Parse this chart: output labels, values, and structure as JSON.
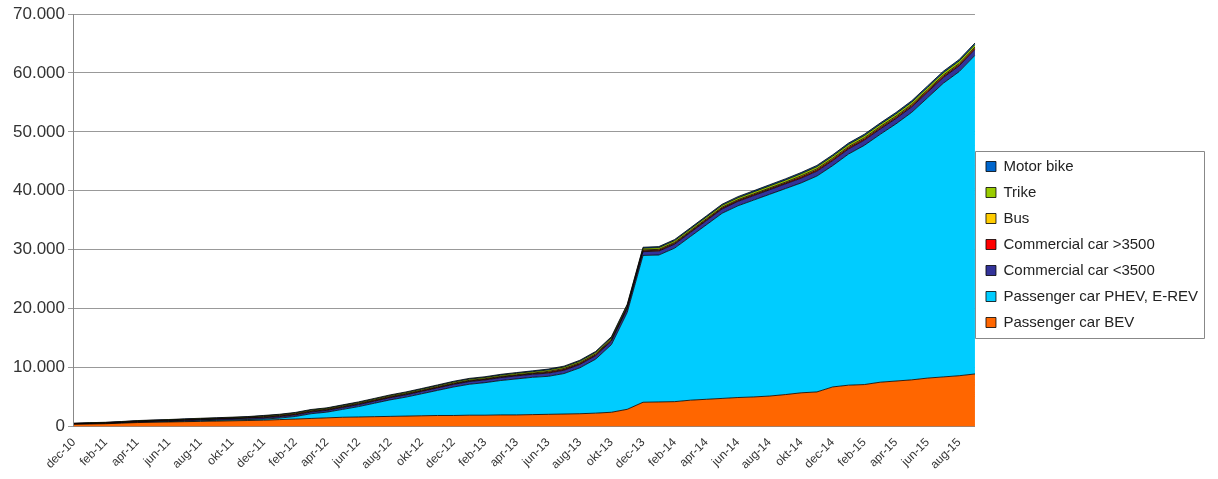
{
  "chart_data": {
    "type": "area",
    "stacked": true,
    "grid": "y",
    "legend": "right",
    "categories": [
      "dec-10",
      null,
      "feb-11",
      null,
      "apr-11",
      null,
      "jun-11",
      null,
      "aug-11",
      null,
      "okt-11",
      null,
      "dec-11",
      null,
      "feb-12",
      null,
      "apr-12",
      null,
      "jun-12",
      null,
      "aug-12",
      null,
      "okt-12",
      null,
      "dec-12",
      null,
      "feb-13",
      null,
      "apr-13",
      null,
      "jun-13",
      null,
      "aug-13",
      null,
      "okt-13",
      null,
      "dec-13",
      null,
      "feb-14",
      null,
      "apr-14",
      null,
      "jun-14",
      null,
      "aug-14",
      null,
      "okt-14",
      null,
      "dec-14",
      null,
      "feb-15",
      null,
      "apr-15",
      null,
      "jun-15",
      null,
      "aug-15",
      null
    ],
    "ylim": [
      0,
      70000
    ],
    "yticks": [
      0,
      {
        "value": 10000,
        "label": "10.000"
      },
      {
        "value": 20000,
        "label": "20.000"
      },
      {
        "value": 30000,
        "label": "30.000"
      },
      {
        "value": 40000,
        "label": "40.000"
      },
      {
        "value": 50000,
        "label": "50.000"
      },
      {
        "value": 60000,
        "label": "60.000"
      },
      {
        "value": 70000,
        "label": "70.000"
      }
    ],
    "series": [
      {
        "name": "Passenger car BEV",
        "color": "#ff6600",
        "values": [
          350,
          400,
          450,
          550,
          650,
          700,
          750,
          800,
          850,
          900,
          950,
          1000,
          1050,
          1150,
          1250,
          1350,
          1450,
          1550,
          1600,
          1650,
          1700,
          1750,
          1800,
          1850,
          1850,
          1900,
          1900,
          1950,
          1950,
          2000,
          2050,
          2100,
          2150,
          2250,
          2400,
          2900,
          4100,
          4150,
          4200,
          4450,
          4600,
          4750,
          4900,
          5000,
          5150,
          5400,
          5700,
          5850,
          6700,
          7000,
          7100,
          7500,
          7700,
          7900,
          8200,
          8400,
          8600,
          8900
        ]
      },
      {
        "name": "Passenger car PHEV, E-REV",
        "color": "#00ccff",
        "values": [
          0,
          10,
          10,
          10,
          30,
          50,
          70,
          90,
          110,
          130,
          150,
          170,
          190,
          260,
          430,
          800,
          970,
          1340,
          1760,
          2280,
          2800,
          3220,
          3740,
          4260,
          4830,
          5250,
          5520,
          5840,
          6110,
          6330,
          6450,
          6870,
          7790,
          9160,
          11480,
          16450,
          24920,
          24940,
          26060,
          27780,
          29600,
          31420,
          32540,
          33410,
          34230,
          34950,
          35620,
          36640,
          37560,
          39230,
          40600,
          42070,
          43640,
          45410,
          47580,
          49850,
          51620,
          54090
        ]
      },
      {
        "name": "Commercial car <3500",
        "color": "#333399",
        "values": [
          30,
          50,
          60,
          80,
          100,
          120,
          130,
          150,
          170,
          180,
          200,
          220,
          230,
          250,
          270,
          290,
          300,
          320,
          340,
          350,
          370,
          390,
          400,
          420,
          440,
          460,
          470,
          490,
          510,
          520,
          540,
          560,
          570,
          590,
          610,
          630,
          640,
          660,
          680,
          690,
          710,
          730,
          740,
          760,
          780,
          800,
          810,
          830,
          850,
          860,
          880,
          900,
          910,
          930,
          950,
          970,
          980,
          1000
        ]
      },
      {
        "name": "Commercial car >3500",
        "color": "#ff0000",
        "values": [
          50,
          50,
          50,
          50,
          50,
          50,
          50,
          50,
          50,
          50,
          50,
          50,
          100,
          100,
          100,
          100,
          100,
          100,
          100,
          100,
          100,
          100,
          100,
          100,
          100,
          100,
          100,
          100,
          100,
          100,
          150,
          150,
          150,
          150,
          150,
          150,
          150,
          150,
          150,
          150,
          150,
          150,
          150,
          150,
          150,
          150,
          200,
          200,
          200,
          200,
          200,
          200,
          200,
          200,
          200,
          200,
          200,
          200
        ]
      },
      {
        "name": "Bus",
        "color": "#ffcc00",
        "values": [
          50,
          50,
          50,
          50,
          50,
          50,
          50,
          50,
          50,
          50,
          50,
          50,
          100,
          100,
          100,
          100,
          100,
          100,
          100,
          100,
          100,
          100,
          100,
          100,
          100,
          100,
          100,
          100,
          100,
          100,
          150,
          150,
          150,
          150,
          150,
          150,
          150,
          150,
          150,
          150,
          150,
          150,
          150,
          150,
          150,
          150,
          200,
          200,
          200,
          200,
          200,
          200,
          200,
          200,
          200,
          200,
          200,
          200
        ]
      },
      {
        "name": "Trike",
        "color": "#99cc00",
        "values": [
          30,
          40,
          40,
          50,
          60,
          70,
          70,
          80,
          90,
          90,
          100,
          110,
          110,
          120,
          130,
          140,
          140,
          150,
          160,
          160,
          170,
          180,
          180,
          190,
          200,
          210,
          210,
          220,
          230,
          230,
          240,
          250,
          250,
          260,
          270,
          280,
          280,
          290,
          300,
          300,
          310,
          320,
          320,
          330,
          340,
          350,
          350,
          360,
          370,
          370,
          380,
          390,
          390,
          400,
          410,
          420,
          420,
          430
        ]
      },
      {
        "name": "Motor bike",
        "color": "#0066cc",
        "values": [
          30,
          30,
          40,
          40,
          50,
          50,
          50,
          60,
          60,
          70,
          70,
          70,
          80,
          80,
          90,
          90,
          90,
          100,
          100,
          110,
          110,
          110,
          120,
          120,
          130,
          130,
          130,
          140,
          140,
          150,
          150,
          150,
          160,
          160,
          170,
          170,
          170,
          180,
          180,
          190,
          190,
          190,
          200,
          200,
          210,
          210,
          210,
          220,
          220,
          230,
          230,
          230,
          240,
          240,
          250,
          250,
          250,
          260
        ]
      }
    ]
  }
}
